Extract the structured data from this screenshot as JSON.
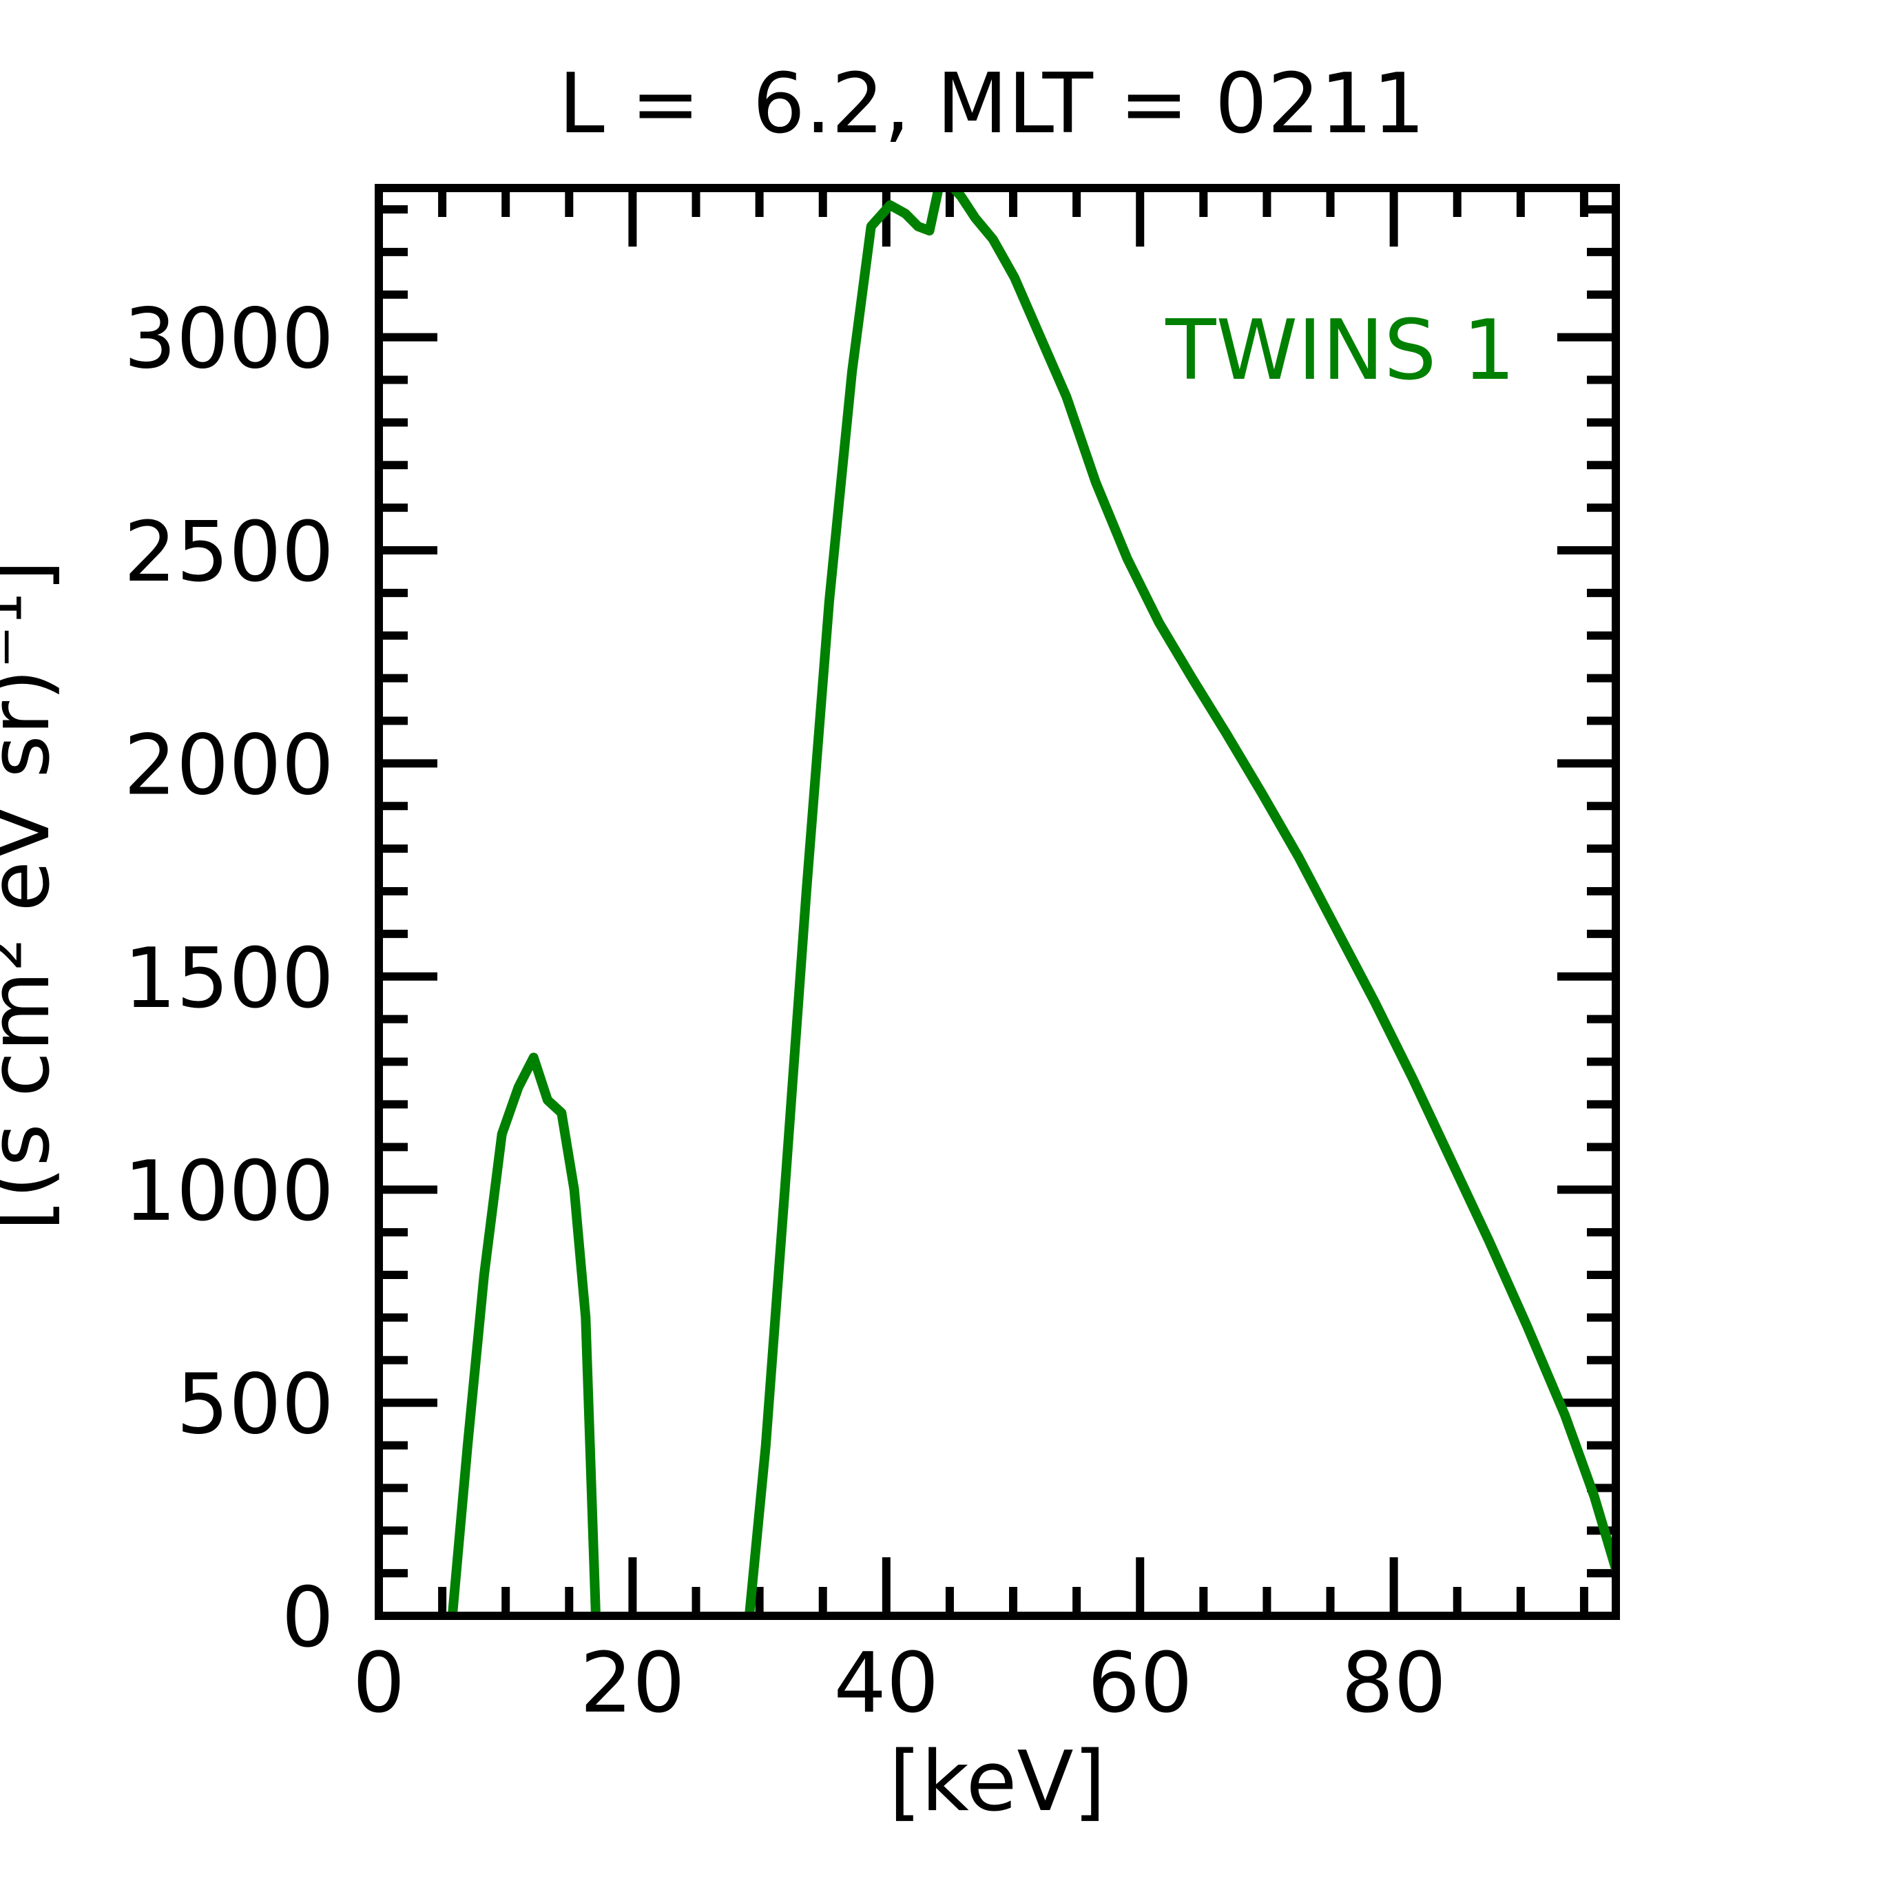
{
  "chart_data": {
    "type": "line",
    "title": "L =  6.2, MLT = 0211",
    "xlabel": "[keV]",
    "ylabel": "[(s cm² eV sr)⁻¹]",
    "xlim": [
      0,
      97.5
    ],
    "ylim": [
      0,
      3350
    ],
    "x_ticks": [
      0,
      20,
      40,
      60,
      80
    ],
    "y_ticks": [
      0,
      500,
      1000,
      1500,
      2000,
      2500,
      3000
    ],
    "x_minor_step": 5,
    "y_minor_step": 100,
    "grid": false,
    "legend_position": "top-right",
    "series": [
      {
        "name": "TWINS 1",
        "color": "#008000",
        "x": [
          5.8,
          7,
          8.3,
          9.7,
          11.0,
          12.2,
          13.3,
          14.4,
          15.4,
          16.3,
          17.1,
          29.2,
          30.5,
          32.0,
          33.7,
          35.5,
          37.3,
          38.8,
          40.3,
          41.5,
          42.5,
          43.4,
          44.2,
          45.0,
          45.9,
          47.0,
          48.4,
          50.1,
          52.0,
          54.2,
          56.5,
          59.0,
          61.5,
          64.1,
          66.8,
          69.6,
          72.5,
          75.5,
          78.5,
          81.5,
          84.5,
          87.5,
          90.5,
          93.5,
          95.8,
          97.5
        ],
        "y": [
          0,
          400,
          800,
          1130,
          1240,
          1310,
          1210,
          1180,
          1000,
          700,
          0,
          0,
          400,
          1000,
          1700,
          2380,
          2920,
          3260,
          3310,
          3290,
          3260,
          3250,
          3360,
          3360,
          3330,
          3280,
          3230,
          3140,
          3010,
          2860,
          2660,
          2480,
          2330,
          2200,
          2070,
          1930,
          1780,
          1610,
          1440,
          1260,
          1070,
          880,
          680,
          470,
          280,
          110
        ]
      }
    ]
  }
}
